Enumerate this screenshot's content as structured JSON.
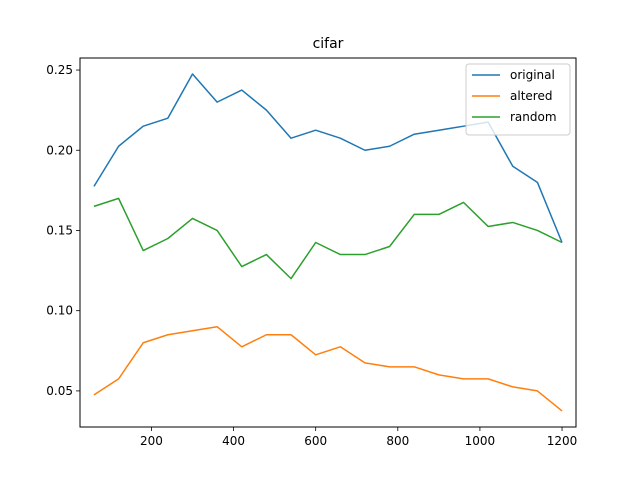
{
  "chart_data": {
    "type": "line",
    "title": "cifar",
    "xlabel": "",
    "ylabel": "",
    "xlim": [
      26,
      1234
    ],
    "ylim": [
      0.0275,
      0.2575
    ],
    "xticks": [
      200,
      400,
      600,
      800,
      1000,
      1200
    ],
    "yticks": [
      0.05,
      0.1,
      0.15,
      0.2,
      0.25
    ],
    "xtick_labels": [
      "200",
      "400",
      "600",
      "800",
      "1000",
      "1200"
    ],
    "ytick_labels": [
      "0.05",
      "0.10",
      "0.15",
      "0.20",
      "0.25"
    ],
    "grid": false,
    "legend_position": "top-right",
    "x": [
      60,
      120,
      180,
      240,
      300,
      360,
      420,
      480,
      540,
      600,
      660,
      720,
      780,
      840,
      900,
      960,
      1020,
      1080,
      1140,
      1200
    ],
    "series": [
      {
        "name": "original",
        "color": "#1f77b4",
        "values": [
          0.1775,
          0.2025,
          0.215,
          0.22,
          0.2475,
          0.23,
          0.2375,
          0.225,
          0.2075,
          0.2125,
          0.2075,
          0.2,
          0.2025,
          0.21,
          0.2125,
          0.215,
          0.2175,
          0.19,
          0.18,
          0.1425
        ]
      },
      {
        "name": "altered",
        "color": "#ff7f0e",
        "values": [
          0.0475,
          0.0575,
          0.08,
          0.085,
          0.0875,
          0.09,
          0.0775,
          0.085,
          0.085,
          0.0725,
          0.0775,
          0.0675,
          0.065,
          0.065,
          0.06,
          0.0575,
          0.0575,
          0.0525,
          0.05,
          0.0375
        ]
      },
      {
        "name": "random",
        "color": "#2ca02c",
        "values": [
          0.165,
          0.17,
          0.1375,
          0.145,
          0.1575,
          0.15,
          0.1275,
          0.135,
          0.12,
          0.1425,
          0.135,
          0.135,
          0.14,
          0.16,
          0.16,
          0.1675,
          0.1525,
          0.155,
          0.15,
          0.1425
        ]
      }
    ]
  }
}
